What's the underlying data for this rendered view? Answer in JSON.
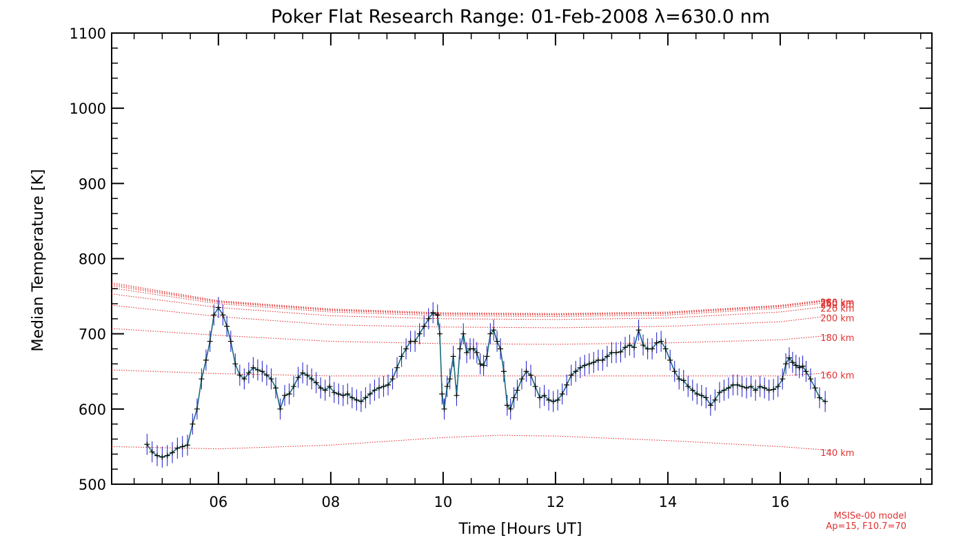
{
  "chart_data": {
    "type": "line",
    "title": "Poker Flat Research Range: 01-Feb-2008 λ=630.0 nm",
    "xlabel": "Time [Hours UT]",
    "ylabel": "Median Temperature [K]",
    "xlim": [
      4.1,
      18.7
    ],
    "ylim": [
      500,
      1100
    ],
    "x_ticks": [
      {
        "v": 6,
        "label": "06"
      },
      {
        "v": 8,
        "label": "08"
      },
      {
        "v": 10,
        "label": "10"
      },
      {
        "v": 12,
        "label": "12"
      },
      {
        "v": 14,
        "label": "14"
      },
      {
        "v": 16,
        "label": "16"
      }
    ],
    "y_ticks": [
      500,
      600,
      700,
      800,
      900,
      1000,
      1100
    ],
    "grid": false,
    "legend": "none",
    "colors": {
      "measurement_line": "#1a6a7a",
      "error_bars": "#2a2ad0",
      "markers": "#000000",
      "model": "#e03030"
    },
    "series": [
      {
        "values": [
          [
            4.73,
            553
          ],
          [
            4.82,
            543
          ],
          [
            4.91,
            538
          ],
          [
            5.0,
            536
          ],
          [
            5.09,
            538
          ],
          [
            5.18,
            542
          ],
          [
            5.27,
            548
          ],
          [
            5.36,
            550
          ],
          [
            5.45,
            552
          ],
          [
            5.54,
            580
          ],
          [
            5.62,
            600
          ],
          [
            5.7,
            640
          ],
          [
            5.78,
            665
          ],
          [
            5.85,
            690
          ],
          [
            5.92,
            725
          ],
          [
            6.0,
            735
          ],
          [
            6.08,
            725
          ],
          [
            6.15,
            710
          ],
          [
            6.22,
            690
          ],
          [
            6.3,
            660
          ],
          [
            6.38,
            645
          ],
          [
            6.46,
            640
          ],
          [
            6.54,
            648
          ],
          [
            6.62,
            655
          ],
          [
            6.7,
            652
          ],
          [
            6.78,
            650
          ],
          [
            6.86,
            645
          ],
          [
            6.94,
            640
          ],
          [
            7.02,
            628
          ],
          [
            7.1,
            600
          ],
          [
            7.18,
            618
          ],
          [
            7.26,
            620
          ],
          [
            7.34,
            630
          ],
          [
            7.42,
            642
          ],
          [
            7.5,
            648
          ],
          [
            7.58,
            645
          ],
          [
            7.66,
            640
          ],
          [
            7.74,
            635
          ],
          [
            7.82,
            628
          ],
          [
            7.9,
            625
          ],
          [
            7.98,
            630
          ],
          [
            8.06,
            622
          ],
          [
            8.14,
            620
          ],
          [
            8.22,
            618
          ],
          [
            8.3,
            620
          ],
          [
            8.38,
            615
          ],
          [
            8.46,
            612
          ],
          [
            8.54,
            610
          ],
          [
            8.62,
            615
          ],
          [
            8.7,
            620
          ],
          [
            8.78,
            625
          ],
          [
            8.86,
            628
          ],
          [
            8.94,
            630
          ],
          [
            9.02,
            632
          ],
          [
            9.1,
            640
          ],
          [
            9.18,
            655
          ],
          [
            9.26,
            670
          ],
          [
            9.34,
            680
          ],
          [
            9.42,
            690
          ],
          [
            9.5,
            690
          ],
          [
            9.58,
            700
          ],
          [
            9.66,
            710
          ],
          [
            9.74,
            720
          ],
          [
            9.82,
            728
          ],
          [
            9.9,
            725
          ],
          [
            9.94,
            700
          ],
          [
            9.98,
            620
          ],
          [
            10.02,
            600
          ],
          [
            10.07,
            630
          ],
          [
            10.12,
            640
          ],
          [
            10.18,
            670
          ],
          [
            10.24,
            618
          ],
          [
            10.3,
            680
          ],
          [
            10.36,
            700
          ],
          [
            10.42,
            675
          ],
          [
            10.48,
            680
          ],
          [
            10.54,
            680
          ],
          [
            10.6,
            675
          ],
          [
            10.66,
            660
          ],
          [
            10.72,
            658
          ],
          [
            10.78,
            670
          ],
          [
            10.84,
            700
          ],
          [
            10.9,
            705
          ],
          [
            10.96,
            690
          ],
          [
            11.02,
            680
          ],
          [
            11.08,
            650
          ],
          [
            11.14,
            605
          ],
          [
            11.2,
            600
          ],
          [
            11.26,
            615
          ],
          [
            11.32,
            625
          ],
          [
            11.4,
            640
          ],
          [
            11.48,
            650
          ],
          [
            11.56,
            645
          ],
          [
            11.64,
            630
          ],
          [
            11.72,
            615
          ],
          [
            11.8,
            618
          ],
          [
            11.88,
            612
          ],
          [
            11.96,
            610
          ],
          [
            12.04,
            612
          ],
          [
            12.12,
            620
          ],
          [
            12.2,
            632
          ],
          [
            12.28,
            645
          ],
          [
            12.36,
            650
          ],
          [
            12.44,
            655
          ],
          [
            12.52,
            658
          ],
          [
            12.6,
            660
          ],
          [
            12.68,
            662
          ],
          [
            12.76,
            665
          ],
          [
            12.84,
            665
          ],
          [
            12.92,
            670
          ],
          [
            13.0,
            675
          ],
          [
            13.08,
            675
          ],
          [
            13.16,
            676
          ],
          [
            13.24,
            682
          ],
          [
            13.32,
            685
          ],
          [
            13.4,
            682
          ],
          [
            13.48,
            705
          ],
          [
            13.56,
            685
          ],
          [
            13.64,
            680
          ],
          [
            13.72,
            680
          ],
          [
            13.8,
            688
          ],
          [
            13.88,
            690
          ],
          [
            13.96,
            680
          ],
          [
            14.04,
            665
          ],
          [
            14.12,
            650
          ],
          [
            14.2,
            640
          ],
          [
            14.28,
            638
          ],
          [
            14.36,
            630
          ],
          [
            14.44,
            625
          ],
          [
            14.52,
            620
          ],
          [
            14.6,
            618
          ],
          [
            14.68,
            615
          ],
          [
            14.76,
            605
          ],
          [
            14.84,
            612
          ],
          [
            14.92,
            622
          ],
          [
            15.0,
            625
          ],
          [
            15.08,
            628
          ],
          [
            15.16,
            632
          ],
          [
            15.24,
            632
          ],
          [
            15.32,
            630
          ],
          [
            15.4,
            628
          ],
          [
            15.48,
            630
          ],
          [
            15.56,
            625
          ],
          [
            15.64,
            630
          ],
          [
            15.72,
            628
          ],
          [
            15.8,
            625
          ],
          [
            15.88,
            626
          ],
          [
            15.96,
            630
          ],
          [
            16.04,
            640
          ],
          [
            16.1,
            660
          ],
          [
            16.16,
            668
          ],
          [
            16.22,
            662
          ],
          [
            16.28,
            658
          ],
          [
            16.34,
            655
          ],
          [
            16.4,
            657
          ],
          [
            16.46,
            650
          ],
          [
            16.54,
            640
          ],
          [
            16.62,
            628
          ],
          [
            16.7,
            615
          ],
          [
            16.8,
            610
          ]
        ]
      }
    ],
    "model_curves": [
      {
        "label": "140 km",
        "values": [
          [
            4.1,
            550
          ],
          [
            6,
            547
          ],
          [
            8,
            552
          ],
          [
            10,
            562
          ],
          [
            11,
            565
          ],
          [
            12,
            564
          ],
          [
            14,
            558
          ],
          [
            16,
            550
          ],
          [
            16.9,
            545
          ]
        ]
      },
      {
        "label": "160 km",
        "values": [
          [
            4.1,
            652
          ],
          [
            6,
            647
          ],
          [
            8,
            644
          ],
          [
            10,
            644
          ],
          [
            12,
            644
          ],
          [
            14,
            644
          ],
          [
            16,
            644
          ],
          [
            16.9,
            648
          ]
        ]
      },
      {
        "label": "180 km",
        "values": [
          [
            4.1,
            707
          ],
          [
            6,
            698
          ],
          [
            8,
            690
          ],
          [
            10,
            687
          ],
          [
            12,
            686
          ],
          [
            14,
            688
          ],
          [
            16,
            692
          ],
          [
            16.9,
            698
          ]
        ]
      },
      {
        "label": "200 km",
        "values": [
          [
            4.1,
            738
          ],
          [
            6,
            723
          ],
          [
            8,
            712
          ],
          [
            10,
            709
          ],
          [
            12,
            708
          ],
          [
            14,
            710
          ],
          [
            16,
            716
          ],
          [
            16.9,
            724
          ]
        ]
      },
      {
        "label": "220 km",
        "values": [
          [
            4.1,
            753
          ],
          [
            6,
            735
          ],
          [
            8,
            724
          ],
          [
            10,
            720
          ],
          [
            12,
            719
          ],
          [
            14,
            721
          ],
          [
            16,
            729
          ],
          [
            16.9,
            737
          ]
        ]
      },
      {
        "label": "240 km",
        "values": [
          [
            4.1,
            761
          ],
          [
            6,
            740
          ],
          [
            8,
            729
          ],
          [
            10,
            724
          ],
          [
            12,
            723
          ],
          [
            14,
            725
          ],
          [
            16,
            734
          ],
          [
            16.9,
            742
          ]
        ]
      },
      {
        "label": "260 km",
        "values": [
          [
            4.1,
            764
          ],
          [
            6,
            742
          ],
          [
            8,
            731
          ],
          [
            10,
            726
          ],
          [
            12,
            725
          ],
          [
            14,
            727
          ],
          [
            16,
            736
          ],
          [
            16.9,
            744
          ]
        ]
      },
      {
        "label": "280 km",
        "values": [
          [
            4.1,
            766
          ],
          [
            6,
            743
          ],
          [
            8,
            732
          ],
          [
            10,
            727
          ],
          [
            12,
            726
          ],
          [
            14,
            728
          ],
          [
            16,
            737
          ],
          [
            16.9,
            745
          ]
        ]
      },
      {
        "label": "300 km",
        "values": [
          [
            4.1,
            768
          ],
          [
            6,
            744
          ],
          [
            8,
            733
          ],
          [
            10,
            728
          ],
          [
            12,
            727
          ],
          [
            14,
            729
          ],
          [
            16,
            738
          ],
          [
            16.9,
            746
          ]
        ]
      }
    ],
    "model_labels": [
      "140 km",
      "160 km",
      "180 km",
      "200 km",
      "220 km",
      "240 km",
      "260 km",
      "280 km"
    ],
    "notes": [
      "MSISe-00 model",
      "Ap=15, F10.7=70"
    ]
  }
}
